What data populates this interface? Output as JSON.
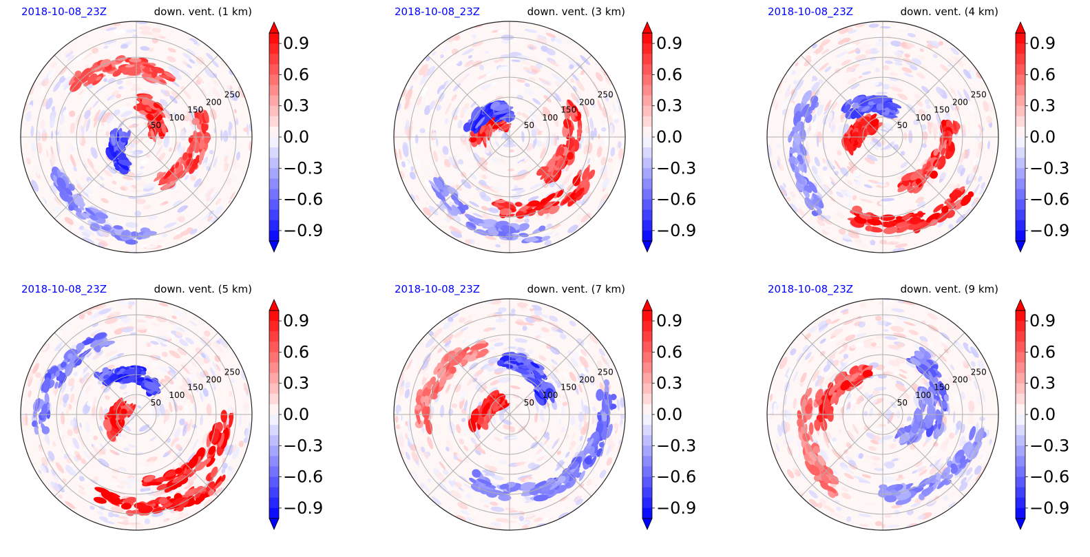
{
  "colors": {
    "date_label": "#0000ff",
    "positive": "#ff0000",
    "negative": "#0000ff",
    "grid": "#b0b0b0",
    "frame": "#222222"
  },
  "chart_data": [
    {
      "type": "heatmap",
      "projection": "polar",
      "date": "2018-10-08_23Z",
      "title": "down. vent. (1 km)",
      "radial_ticks": [
        "50",
        "100",
        "150",
        "200",
        "250"
      ],
      "colorbar_ticks": [
        "0.9",
        "0.6",
        "0.3",
        "0.0",
        "−0.3",
        "−0.6",
        "−0.9"
      ],
      "colorbar_range": [
        -1.0,
        1.0
      ],
      "colormap": "bwr",
      "grid": true,
      "features": [
        {
          "sign": 1,
          "angle": 45,
          "radius": 70,
          "strength": 0.9
        },
        {
          "sign": 1,
          "angle": 100,
          "radius": 180,
          "strength": 0.7
        },
        {
          "sign": -1,
          "angle": 210,
          "radius": 60,
          "strength": 0.8
        },
        {
          "sign": 1,
          "angle": -20,
          "radius": 150,
          "strength": 0.8
        },
        {
          "sign": -1,
          "angle": -120,
          "radius": 230,
          "strength": 0.5
        }
      ]
    },
    {
      "type": "heatmap",
      "projection": "polar",
      "date": "2018-10-08_23Z",
      "title": "down. vent. (3 km)",
      "radial_ticks": [
        "50",
        "100",
        "150",
        "200",
        "250"
      ],
      "colorbar_ticks": [
        "0.9",
        "0.6",
        "0.3",
        "0.0",
        "−0.3",
        "−0.6",
        "−0.9"
      ],
      "colorbar_range": [
        -1.0,
        1.0
      ],
      "colormap": "bwr",
      "grid": true,
      "features": [
        {
          "sign": 1,
          "angle": 150,
          "radius": 60,
          "strength": 1.0
        },
        {
          "sign": 1,
          "angle": -10,
          "radius": 150,
          "strength": 0.9
        },
        {
          "sign": 1,
          "angle": -60,
          "radius": 200,
          "strength": 0.9
        },
        {
          "sign": -1,
          "angle": 130,
          "radius": 80,
          "strength": 0.8
        },
        {
          "sign": -1,
          "angle": -110,
          "radius": 230,
          "strength": 0.5
        }
      ]
    },
    {
      "type": "heatmap",
      "projection": "polar",
      "date": "2018-10-08_23Z",
      "title": "down. vent. (4 km)",
      "radial_ticks": [
        "50",
        "100",
        "150",
        "200",
        "250"
      ],
      "colorbar_ticks": [
        "0.9",
        "0.6",
        "0.3",
        "0.0",
        "−0.3",
        "−0.6",
        "−0.9"
      ],
      "colorbar_range": [
        -1.0,
        1.0
      ],
      "colormap": "bwr",
      "grid": true,
      "features": [
        {
          "sign": 1,
          "angle": 160,
          "radius": 60,
          "strength": 1.0
        },
        {
          "sign": 1,
          "angle": -30,
          "radius": 150,
          "strength": 0.9
        },
        {
          "sign": 1,
          "angle": -70,
          "radius": 230,
          "strength": 1.0
        },
        {
          "sign": -1,
          "angle": 110,
          "radius": 90,
          "strength": 0.7
        },
        {
          "sign": -1,
          "angle": 190,
          "radius": 220,
          "strength": 0.5
        }
      ]
    },
    {
      "type": "heatmap",
      "projection": "polar",
      "date": "2018-10-08_23Z",
      "title": "down. vent. (5 km)",
      "radial_ticks": [
        "50",
        "100",
        "150",
        "200",
        "250"
      ],
      "colorbar_ticks": [
        "0.9",
        "0.6",
        "0.3",
        "0.0",
        "−0.3",
        "−0.6",
        "−0.9"
      ],
      "colorbar_range": [
        -1.0,
        1.0
      ],
      "colormap": "bwr",
      "grid": true,
      "features": [
        {
          "sign": 1,
          "angle": 180,
          "radius": 50,
          "strength": 1.0
        },
        {
          "sign": 1,
          "angle": -40,
          "radius": 200,
          "strength": 1.0
        },
        {
          "sign": 1,
          "angle": -75,
          "radius": 240,
          "strength": 1.0
        },
        {
          "sign": -1,
          "angle": 95,
          "radius": 100,
          "strength": 0.8
        },
        {
          "sign": -1,
          "angle": 150,
          "radius": 220,
          "strength": 0.6
        }
      ]
    },
    {
      "type": "heatmap",
      "projection": "polar",
      "date": "2018-10-08_23Z",
      "title": "down. vent. (7 km)",
      "radial_ticks": [
        "50",
        "100",
        "150",
        "200",
        "250"
      ],
      "colorbar_ticks": [
        "0.9",
        "0.6",
        "0.3",
        "0.0",
        "−0.3",
        "−0.6",
        "−0.9"
      ],
      "colorbar_range": [
        -1.0,
        1.0
      ],
      "colormap": "bwr",
      "grid": true,
      "features": [
        {
          "sign": 1,
          "angle": 160,
          "radius": 60,
          "strength": 1.0
        },
        {
          "sign": 1,
          "angle": 150,
          "radius": 200,
          "strength": 0.6
        },
        {
          "sign": -1,
          "angle": 60,
          "radius": 120,
          "strength": 0.8
        },
        {
          "sign": -1,
          "angle": -20,
          "radius": 230,
          "strength": 0.6
        },
        {
          "sign": -1,
          "angle": -80,
          "radius": 200,
          "strength": 0.5
        }
      ]
    },
    {
      "type": "heatmap",
      "projection": "polar",
      "date": "2018-10-08_23Z",
      "title": "down. vent. (9 km)",
      "radial_ticks": [
        "50",
        "100",
        "150",
        "200",
        "250"
      ],
      "colorbar_ticks": [
        "0.9",
        "0.6",
        "0.3",
        "0.0",
        "−0.3",
        "−0.6",
        "−0.9"
      ],
      "colorbar_range": [
        -1.0,
        1.0
      ],
      "colormap": "bwr",
      "grid": true,
      "features": [
        {
          "sign": 1,
          "angle": 150,
          "radius": 130,
          "strength": 0.9
        },
        {
          "sign": 1,
          "angle": 200,
          "radius": 200,
          "strength": 0.6
        },
        {
          "sign": -1,
          "angle": 20,
          "radius": 150,
          "strength": 0.6
        },
        {
          "sign": -1,
          "angle": -50,
          "radius": 220,
          "strength": 0.5
        },
        {
          "sign": -1,
          "angle": -10,
          "radius": 100,
          "strength": 0.5
        }
      ]
    }
  ]
}
